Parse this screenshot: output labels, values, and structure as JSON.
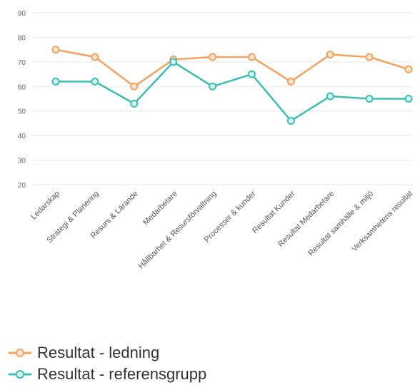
{
  "chart_data": {
    "type": "line",
    "categories": [
      "Ledarskap",
      "Strategi & Planering",
      "Resurs & Lärande",
      "Medarbetare",
      "Hållbarhet & Resursförvaltning",
      "Processer & kunder",
      "Resultat Kunder",
      "Resultat Medarbetare",
      "Resultat samhälle & miljö",
      "Verksamhetens resultat"
    ],
    "series": [
      {
        "name": "Resultat - ledning",
        "color": "#f2a35e",
        "values": [
          75,
          72,
          60,
          71,
          72,
          72,
          62,
          73,
          72,
          67
        ]
      },
      {
        "name": "Resultat - referensgrupp",
        "color": "#3bbfb2",
        "values": [
          62,
          62,
          53,
          70,
          60,
          65,
          46,
          56,
          55,
          55
        ]
      }
    ],
    "yticks": [
      90,
      80,
      70,
      60,
      50,
      40,
      30,
      20
    ],
    "ylim": [
      20,
      90
    ],
    "grid": true,
    "legend": "bottom-left"
  }
}
